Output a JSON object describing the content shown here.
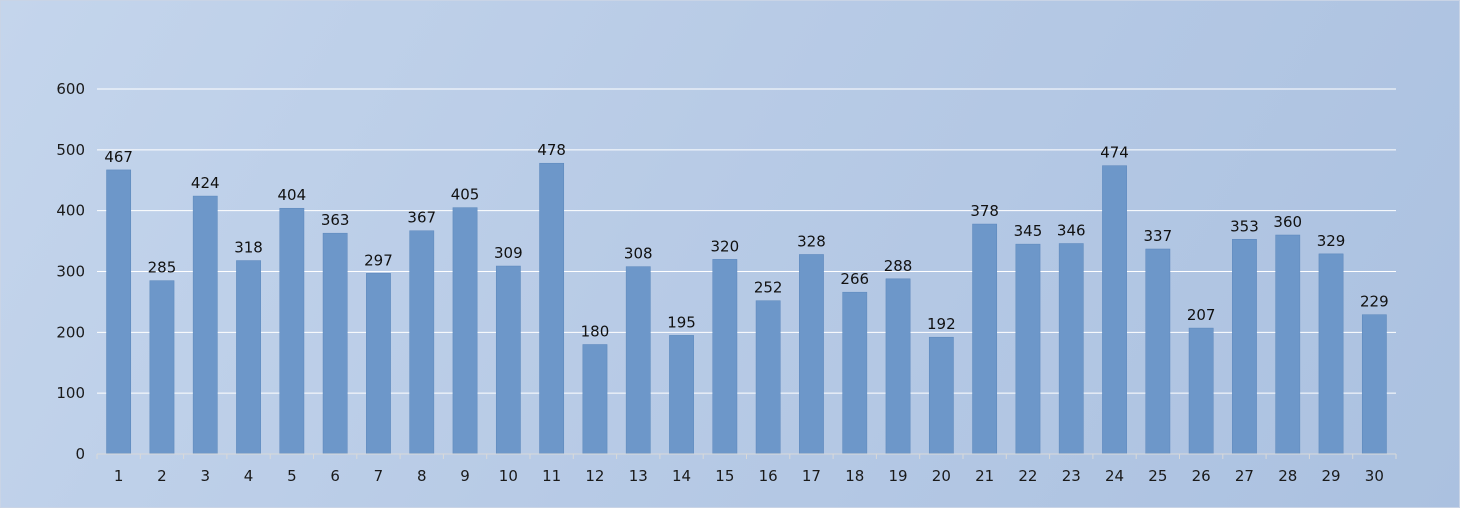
{
  "chart_data": {
    "type": "bar",
    "categories": [
      "1",
      "2",
      "3",
      "4",
      "5",
      "6",
      "7",
      "8",
      "9",
      "10",
      "11",
      "12",
      "13",
      "14",
      "15",
      "16",
      "17",
      "18",
      "19",
      "20",
      "21",
      "22",
      "23",
      "24",
      "25",
      "26",
      "27",
      "28",
      "29",
      "30"
    ],
    "values": [
      467,
      285,
      424,
      318,
      404,
      363,
      297,
      367,
      405,
      309,
      478,
      180,
      308,
      195,
      320,
      252,
      328,
      266,
      288,
      192,
      378,
      345,
      346,
      474,
      337,
      207,
      353,
      360,
      329,
      229
    ],
    "yticks": [
      "0",
      "100",
      "200",
      "300",
      "400",
      "500",
      "600"
    ],
    "ylim": [
      0,
      600
    ],
    "grid": true,
    "legend": "none",
    "colors": {
      "bar": "#6d97c9",
      "bar_edge": "#5a86bb",
      "grid": "#ffffff"
    }
  }
}
